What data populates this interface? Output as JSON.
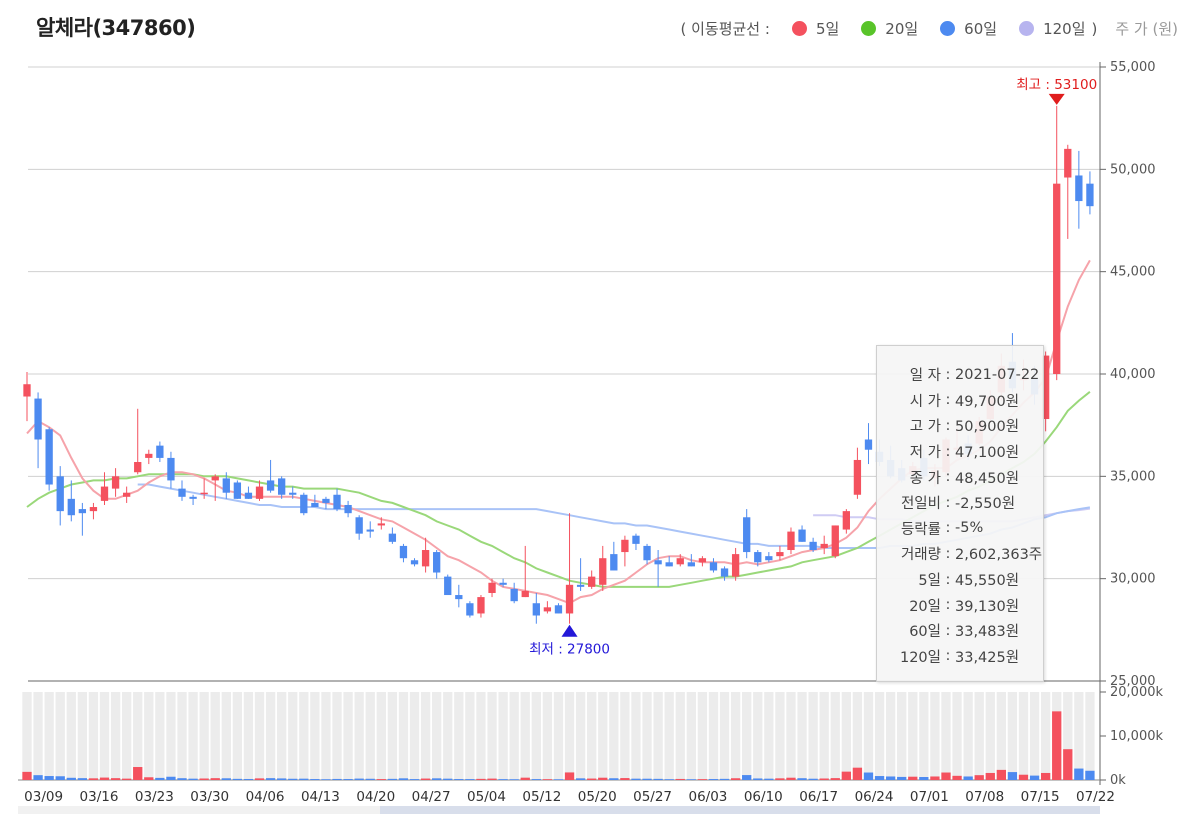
{
  "title": "알체라(347860)",
  "legend": {
    "open": "( 이동평균선  :",
    "close": ")",
    "price": "주 가 (원)",
    "items": [
      {
        "label": "5일",
        "color": "#f4515e"
      },
      {
        "label": "20일",
        "color": "#59c42a"
      },
      {
        "label": "60일",
        "color": "#4d8af0"
      },
      {
        "label": "120일",
        "color": "#b7b4ef"
      }
    ]
  },
  "chart_data": {
    "type": "candlestick",
    "price_axis": {
      "min": 25000,
      "max": 55000,
      "ticks": [
        "25,000",
        "30,000",
        "35,000",
        "40,000",
        "45,000",
        "50,000",
        "55,000"
      ]
    },
    "volume_axis": {
      "min": 0,
      "max": 20000,
      "ticks": [
        "0k",
        "10,000k",
        "20,000k"
      ]
    },
    "x_labels": [
      "03/09",
      "03/16",
      "03/23",
      "03/30",
      "04/06",
      "04/13",
      "04/20",
      "04/27",
      "05/04",
      "05/12",
      "05/20",
      "05/27",
      "06/03",
      "06/10",
      "06/17",
      "06/24",
      "07/01",
      "07/08",
      "07/15",
      "07/22"
    ],
    "x_label_index": [
      0,
      5,
      10,
      15,
      20,
      25,
      30,
      35,
      40,
      45,
      50,
      55,
      60,
      65,
      70,
      75,
      80,
      85,
      90,
      95
    ],
    "candles": [
      [
        38900,
        40100,
        37700,
        39500,
        1850
      ],
      [
        38800,
        39100,
        35400,
        36800,
        1100
      ],
      [
        37300,
        37400,
        34300,
        34600,
        900
      ],
      [
        35000,
        35500,
        32600,
        33300,
        850
      ],
      [
        33900,
        34800,
        32800,
        33100,
        500
      ],
      [
        33400,
        33700,
        32100,
        33200,
        420
      ],
      [
        33300,
        33700,
        32900,
        33500,
        380
      ],
      [
        33800,
        35200,
        33600,
        34500,
        550
      ],
      [
        34400,
        35400,
        34000,
        35000,
        420
      ],
      [
        34000,
        34500,
        33700,
        34200,
        310
      ],
      [
        35200,
        38300,
        35100,
        35700,
        2950
      ],
      [
        35900,
        36300,
        35600,
        36100,
        620
      ],
      [
        36500,
        36700,
        35700,
        35900,
        480
      ],
      [
        35900,
        36200,
        34400,
        34800,
        740
      ],
      [
        34400,
        34800,
        33800,
        34000,
        410
      ],
      [
        34000,
        34100,
        33600,
        33900,
        300
      ],
      [
        34200,
        34900,
        33900,
        34200,
        340
      ],
      [
        34800,
        35100,
        33800,
        35000,
        420
      ],
      [
        34900,
        35200,
        33900,
        34200,
        390
      ],
      [
        34700,
        34800,
        33900,
        33900,
        260
      ],
      [
        34200,
        34500,
        33900,
        33900,
        230
      ],
      [
        33900,
        34800,
        33800,
        34500,
        370
      ],
      [
        34800,
        35800,
        34200,
        34300,
        420
      ],
      [
        34900,
        35000,
        33900,
        34100,
        360
      ],
      [
        34200,
        34500,
        33900,
        34100,
        280
      ],
      [
        34100,
        34200,
        33100,
        33200,
        300
      ],
      [
        33700,
        34100,
        33500,
        33500,
        220
      ],
      [
        33900,
        34000,
        33400,
        33700,
        180
      ],
      [
        34100,
        34400,
        33300,
        33400,
        240
      ],
      [
        33600,
        33800,
        33000,
        33200,
        220
      ],
      [
        33000,
        33100,
        31900,
        32200,
        320
      ],
      [
        32400,
        32800,
        32000,
        32300,
        280
      ],
      [
        32600,
        33000,
        32400,
        32700,
        210
      ],
      [
        32200,
        32500,
        31700,
        31800,
        260
      ],
      [
        31600,
        31700,
        30800,
        31000,
        380
      ],
      [
        30900,
        31000,
        30600,
        30700,
        210
      ],
      [
        30600,
        32000,
        30300,
        31400,
        330
      ],
      [
        31300,
        31400,
        30000,
        30300,
        380
      ],
      [
        30100,
        30200,
        29300,
        29200,
        300
      ],
      [
        29200,
        29700,
        28600,
        29000,
        220
      ],
      [
        28800,
        28900,
        28100,
        28200,
        210
      ],
      [
        28300,
        29200,
        28100,
        29100,
        260
      ],
      [
        29300,
        30000,
        29100,
        29800,
        320
      ],
      [
        29800,
        30000,
        29600,
        29700,
        200
      ],
      [
        29500,
        29800,
        28800,
        28900,
        180
      ],
      [
        29100,
        31600,
        29100,
        29400,
        530
      ],
      [
        28800,
        29300,
        27800,
        28200,
        210
      ],
      [
        28400,
        28900,
        28300,
        28600,
        190
      ],
      [
        28700,
        28800,
        28300,
        28300,
        170
      ],
      [
        28300,
        33200,
        27800,
        29700,
        1720
      ],
      [
        29700,
        31000,
        29400,
        29600,
        380
      ],
      [
        29600,
        30400,
        29500,
        30100,
        330
      ],
      [
        29700,
        31600,
        29400,
        31000,
        520
      ],
      [
        31200,
        31800,
        30400,
        30400,
        400
      ],
      [
        31300,
        32100,
        30600,
        31900,
        440
      ],
      [
        32100,
        32200,
        31400,
        31700,
        300
      ],
      [
        31600,
        31700,
        30700,
        30900,
        290
      ],
      [
        30900,
        31400,
        29600,
        30700,
        260
      ],
      [
        30800,
        31100,
        30600,
        30600,
        190
      ],
      [
        30700,
        31200,
        30600,
        31000,
        240
      ],
      [
        30800,
        31200,
        30600,
        30600,
        180
      ],
      [
        30800,
        31100,
        30600,
        31000,
        200
      ],
      [
        30800,
        31000,
        30300,
        30400,
        220
      ],
      [
        30500,
        30600,
        29900,
        30100,
        260
      ],
      [
        30100,
        31500,
        29900,
        31200,
        400
      ],
      [
        33000,
        33400,
        31000,
        31300,
        1120
      ],
      [
        31300,
        31400,
        30600,
        30800,
        350
      ],
      [
        31100,
        31300,
        30800,
        30900,
        300
      ],
      [
        31100,
        31600,
        30900,
        31300,
        380
      ],
      [
        31400,
        32500,
        31200,
        32300,
        520
      ],
      [
        32400,
        32600,
        31800,
        31800,
        410
      ],
      [
        31800,
        32000,
        31300,
        31400,
        290
      ],
      [
        31500,
        32100,
        31200,
        31700,
        340
      ],
      [
        31100,
        32600,
        31000,
        32600,
        430
      ],
      [
        32400,
        33400,
        32200,
        33300,
        1900
      ],
      [
        34100,
        36400,
        33900,
        35800,
        2800
      ],
      [
        36800,
        37600,
        35600,
        36300,
        1700
      ],
      [
        36200,
        36800,
        35500,
        35700,
        900
      ],
      [
        35800,
        36500,
        34900,
        35000,
        800
      ],
      [
        35400,
        35800,
        34700,
        34800,
        700
      ],
      [
        35100,
        35700,
        34600,
        35500,
        750
      ],
      [
        35900,
        36300,
        34800,
        35000,
        680
      ],
      [
        34900,
        35600,
        34500,
        35300,
        800
      ],
      [
        35200,
        36900,
        35000,
        36800,
        1700
      ],
      [
        36300,
        37400,
        35900,
        36400,
        950
      ],
      [
        36600,
        37000,
        35800,
        36100,
        800
      ],
      [
        36600,
        37900,
        36500,
        37700,
        1100
      ],
      [
        37800,
        39200,
        37600,
        38900,
        1600
      ],
      [
        39100,
        41000,
        38700,
        40400,
        2300
      ],
      [
        40600,
        42000,
        39100,
        39300,
        1800
      ],
      [
        39700,
        40700,
        39200,
        39800,
        1200
      ],
      [
        39800,
        40400,
        38500,
        39000,
        1000
      ],
      [
        37800,
        41100,
        37200,
        40900,
        1600
      ],
      [
        40000,
        53100,
        39700,
        49300,
        15600
      ],
      [
        49600,
        51200,
        46600,
        51000,
        7000
      ],
      [
        49700,
        50900,
        47100,
        48450,
        2600
      ],
      [
        49300,
        49900,
        47800,
        48200,
        2100
      ]
    ],
    "ma": {
      "5": [
        37100,
        37700,
        37400,
        37000,
        35900,
        34900,
        34300,
        33900,
        33900,
        34100,
        34300,
        34700,
        35000,
        35200,
        35200,
        35100,
        34900,
        34600,
        34300,
        34200,
        34000,
        34000,
        34000,
        34000,
        34000,
        33900,
        33800,
        33700,
        33600,
        33500,
        33300,
        33100,
        32900,
        32800,
        32500,
        32200,
        31900,
        31500,
        31100,
        30900,
        30600,
        30300,
        29900,
        29600,
        29500,
        29400,
        29300,
        29200,
        29000,
        28800,
        29100,
        29200,
        29500,
        29700,
        29900,
        30300,
        30700,
        31000,
        31100,
        31100,
        30900,
        30800,
        30800,
        30800,
        30700,
        30800,
        30700,
        30800,
        30900,
        31100,
        31300,
        31400,
        31500,
        31700,
        32000,
        32500,
        33300,
        33900,
        34400,
        34900,
        35300,
        35400,
        35400,
        35400,
        35800,
        36000,
        36300,
        36700,
        37400,
        38000,
        38600,
        39100,
        39800,
        41600,
        43300,
        44600,
        45550
      ],
      "20": [
        33500,
        33900,
        34200,
        34400,
        34600,
        34700,
        34800,
        34800,
        34900,
        34900,
        35000,
        35100,
        35100,
        35100,
        35100,
        35100,
        35000,
        35000,
        35000,
        34900,
        34800,
        34700,
        34600,
        34500,
        34500,
        34400,
        34400,
        34400,
        34400,
        34300,
        34200,
        34000,
        33800,
        33700,
        33500,
        33300,
        33100,
        32800,
        32600,
        32400,
        32100,
        31800,
        31600,
        31300,
        31000,
        30800,
        30500,
        30300,
        30100,
        29900,
        29800,
        29700,
        29600,
        29600,
        29600,
        29600,
        29600,
        29600,
        29600,
        29700,
        29800,
        29900,
        30000,
        30100,
        30100,
        30200,
        30300,
        30400,
        30500,
        30600,
        30800,
        30900,
        31000,
        31100,
        31300,
        31500,
        31800,
        32100,
        32400,
        32700,
        33000,
        33300,
        33600,
        33800,
        34000,
        34300,
        34500,
        34800,
        35100,
        35400,
        35700,
        36100,
        36700,
        37400,
        38200,
        38700,
        39130
      ],
      "60": [
        null,
        null,
        null,
        null,
        null,
        null,
        null,
        null,
        null,
        null,
        34600,
        34600,
        34500,
        34400,
        34300,
        34200,
        34100,
        34000,
        33900,
        33800,
        33700,
        33600,
        33600,
        33500,
        33500,
        33500,
        33500,
        33400,
        33400,
        33400,
        33400,
        33400,
        33400,
        33400,
        33400,
        33400,
        33400,
        33400,
        33400,
        33400,
        33400,
        33400,
        33400,
        33400,
        33400,
        33400,
        33400,
        33300,
        33200,
        33100,
        33000,
        32900,
        32800,
        32700,
        32700,
        32600,
        32600,
        32500,
        32400,
        32300,
        32200,
        32100,
        32000,
        31900,
        31800,
        31700,
        31700,
        31600,
        31600,
        31600,
        31600,
        31600,
        31500,
        31500,
        31500,
        31500,
        31500,
        31500,
        31600,
        31600,
        31600,
        31700,
        31700,
        31800,
        31900,
        32000,
        32100,
        32200,
        32400,
        32500,
        32700,
        32900,
        33000,
        33200,
        33300,
        33400,
        33483
      ],
      "120": [
        null,
        null,
        null,
        null,
        null,
        null,
        null,
        null,
        null,
        null,
        null,
        null,
        null,
        null,
        null,
        null,
        null,
        null,
        null,
        null,
        null,
        null,
        null,
        null,
        null,
        null,
        null,
        null,
        null,
        null,
        null,
        null,
        null,
        null,
        null,
        null,
        null,
        null,
        null,
        null,
        null,
        null,
        null,
        null,
        null,
        null,
        null,
        null,
        null,
        null,
        null,
        null,
        null,
        null,
        null,
        null,
        null,
        null,
        null,
        null,
        null,
        null,
        null,
        null,
        null,
        null,
        null,
        null,
        null,
        null,
        null,
        33100,
        33100,
        33100,
        33000,
        33000,
        33000,
        32900,
        32900,
        32900,
        32800,
        32800,
        32800,
        32800,
        32800,
        32800,
        32800,
        32800,
        32800,
        32800,
        32900,
        33000,
        33100,
        33200,
        33300,
        33350,
        33425
      ]
    },
    "annotations": {
      "high_label": "최고 : 53100",
      "low_label": "최저 : 27800",
      "high_index": 93,
      "high_value": 53100,
      "low_index": 49,
      "low_value": 27800
    },
    "up_color": "#f4515e",
    "down_color": "#4d8af0"
  },
  "tooltip": {
    "rows": [
      {
        "k": "일     자",
        "v": "2021-07-22"
      },
      {
        "k": "시     가",
        "v": "49,700원"
      },
      {
        "k": "고     가",
        "v": "50,900원"
      },
      {
        "k": "저     가",
        "v": "47,100원"
      },
      {
        "k": "종     가",
        "v": "48,450원"
      },
      {
        "k": "전일비",
        "v": "-2,550원"
      },
      {
        "k": "등락률",
        "v": "-5%"
      },
      {
        "k": "거래량",
        "v": "2,602,363주"
      },
      {
        "k": "5일   ",
        "v": "45,550원"
      },
      {
        "k": "20일",
        "v": "39,130원"
      },
      {
        "k": "60일",
        "v": "33,483원"
      },
      {
        "k": "120일",
        "v": "33,425원"
      }
    ]
  }
}
